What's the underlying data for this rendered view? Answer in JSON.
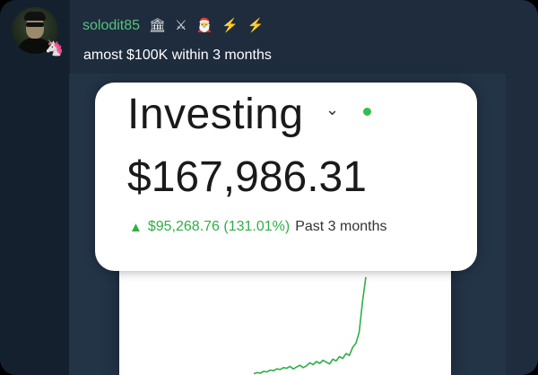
{
  "post": {
    "author": "solodit85",
    "role_icons": [
      {
        "name": "bank-icon",
        "glyph": "🏛"
      },
      {
        "name": "crossed-swords-icon",
        "glyph": "⚔"
      },
      {
        "name": "santa-icon",
        "glyph": "🎅"
      },
      {
        "name": "lightning-icon",
        "glyph": "⚡"
      },
      {
        "name": "lightning-icon",
        "glyph": "⚡"
      }
    ],
    "message": "amost $100K within 3 months",
    "avatar_badge": {
      "name": "unicorn-icon",
      "glyph": "🦄"
    }
  },
  "screenshot": {
    "title": "Investing",
    "chevron": "⌄",
    "balance": "$167,986.31",
    "gain_arrow": "▲",
    "gain": "$95,268.76 (131.01%)",
    "period": "Past 3 months"
  },
  "colors": {
    "username": "#58c27d",
    "gain_green": "#2fae45",
    "background": "#1e2c3d"
  },
  "chart_data": {
    "type": "line",
    "title": "",
    "xlabel": "",
    "ylabel": "",
    "grid": false,
    "series": [
      {
        "values": [
          2,
          4,
          3,
          6,
          5,
          8,
          7,
          10,
          9,
          12,
          11,
          14,
          10,
          13,
          16,
          12,
          15,
          20,
          17,
          22,
          19,
          24,
          21,
          18,
          26,
          23,
          30,
          27,
          35,
          32,
          45,
          52,
          70,
          120,
          160
        ],
        "color": "#2fae45"
      }
    ],
    "ylim": [
      0,
      170
    ]
  }
}
